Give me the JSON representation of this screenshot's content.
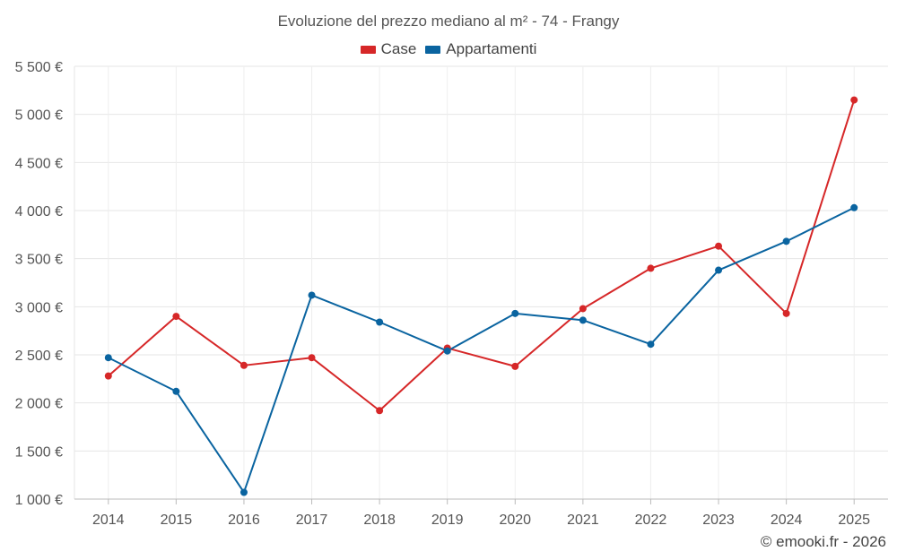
{
  "chart_data": {
    "type": "line",
    "title": "Evoluzione del prezzo mediano al m² - 74 - Frangy",
    "categories": [
      "2014",
      "2015",
      "2016",
      "2017",
      "2018",
      "2019",
      "2020",
      "2021",
      "2022",
      "2023",
      "2024",
      "2025"
    ],
    "series": [
      {
        "name": "Case",
        "color": "#d62728",
        "values": [
          2280,
          2900,
          2390,
          2470,
          1920,
          2570,
          2380,
          2980,
          3400,
          3630,
          2930,
          5150
        ]
      },
      {
        "name": "Appartamenti",
        "color": "#0a64a0",
        "values": [
          2470,
          2120,
          1070,
          3120,
          2840,
          2540,
          2930,
          2860,
          2610,
          3380,
          3680,
          4030
        ]
      }
    ],
    "ylim": [
      1000,
      5500
    ],
    "yticks": [
      1000,
      1500,
      2000,
      2500,
      3000,
      3500,
      4000,
      4500,
      5000,
      5500
    ],
    "ytick_labels": [
      "1 000 €",
      "1 500 €",
      "2 000 €",
      "2 500 €",
      "3 000 €",
      "3 500 €",
      "4 000 €",
      "4 500 €",
      "5 000 €",
      "5 500 €"
    ],
    "xlabel": "",
    "ylabel": "",
    "grid": true,
    "legend_position": "top-center"
  },
  "footer": "© emooki.fr - 2026"
}
